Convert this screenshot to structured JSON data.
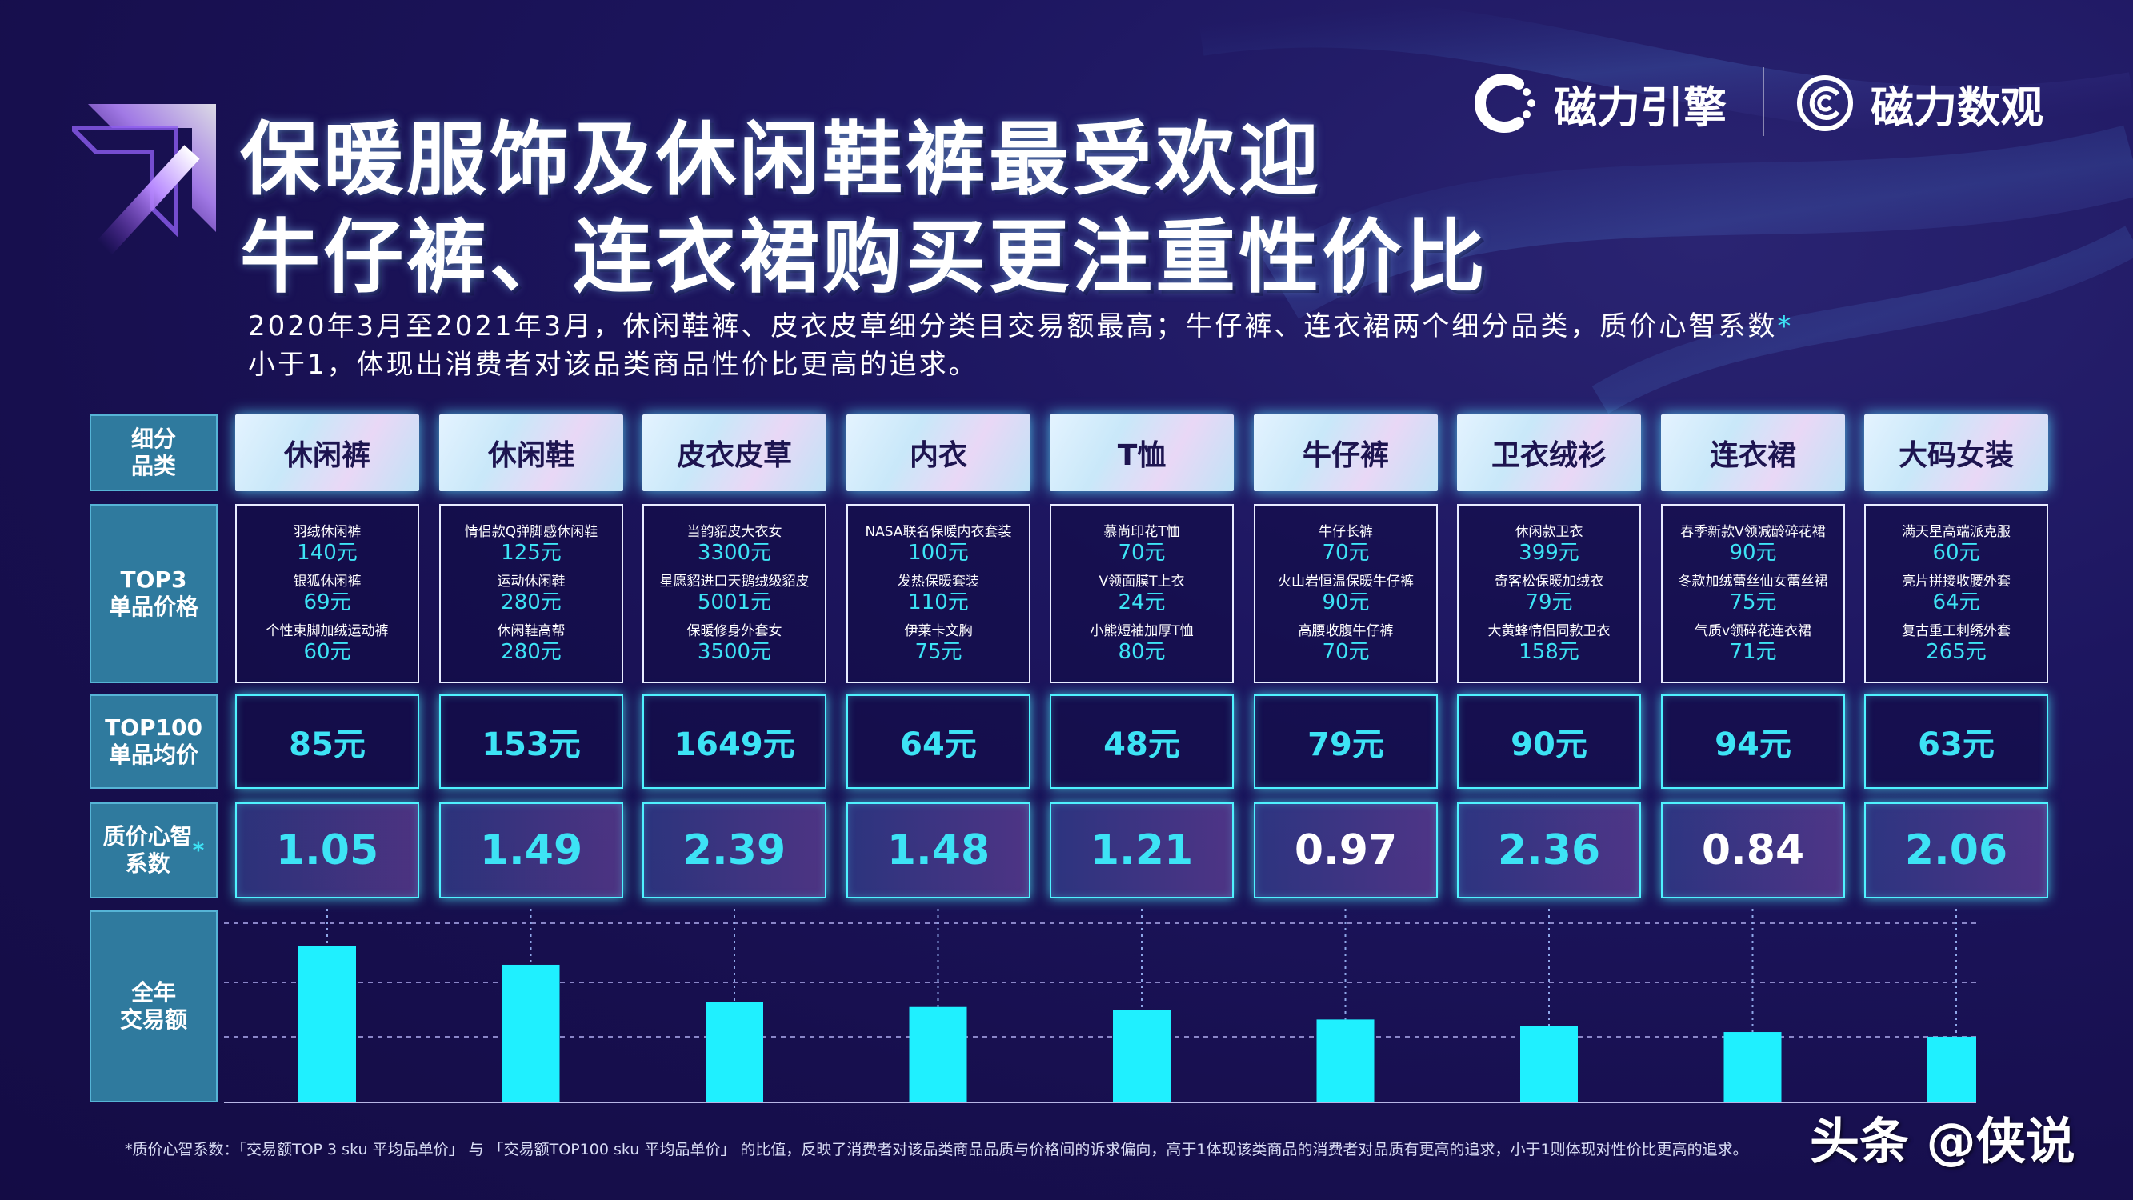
{
  "title": {
    "line1": "保暖服饰及休闲鞋裤最受欢迎",
    "line2": "牛仔裤、连衣裙购买更注重性价比"
  },
  "brands": {
    "left": "磁力引擎",
    "right": "磁力数观"
  },
  "description": {
    "line1": "2020年3月至2021年3月，休闲鞋裤、皮衣皮草细分类目交易额最高；牛仔裤、连衣裙两个细分品类，质价心智系数",
    "line1_star": "*",
    "line2": "小于1，体现出消费者对该品类商品性价比更高的追求。"
  },
  "row_labels": {
    "category": "细分\n品类",
    "top3": "TOP3\n单品价格",
    "top100": "TOP100\n单品均价",
    "ratio": "质价心智\n系数",
    "ratio_star": "*",
    "sales": "全年\n交易额"
  },
  "categories": [
    {
      "name": "休闲裤",
      "top3": [
        {
          "name": "羽绒休闲裤",
          "price": "140元"
        },
        {
          "name": "银狐休闲裤",
          "price": "69元"
        },
        {
          "name": "个性束脚加绒运动裤",
          "price": "60元"
        }
      ],
      "avg": "85元",
      "ratio": "1.05"
    },
    {
      "name": "休闲鞋",
      "top3": [
        {
          "name": "情侣款Q弹脚感休闲鞋",
          "price": "125元"
        },
        {
          "name": "运动休闲鞋",
          "price": "280元"
        },
        {
          "name": "休闲鞋高帮",
          "price": "280元"
        }
      ],
      "avg": "153元",
      "ratio": "1.49"
    },
    {
      "name": "皮衣皮草",
      "top3": [
        {
          "name": "当韵貂皮大衣女",
          "price": "3300元"
        },
        {
          "name": "星愿貂进口天鹅绒级貂皮",
          "price": "5001元"
        },
        {
          "name": "保暖修身外套女",
          "price": "3500元"
        }
      ],
      "avg": "1649元",
      "ratio": "2.39"
    },
    {
      "name": "内衣",
      "top3": [
        {
          "name": "NASA联名保暖内衣套装",
          "price": "100元"
        },
        {
          "name": "发热保暖套装",
          "price": "110元"
        },
        {
          "name": "伊莱卡文胸",
          "price": "75元"
        }
      ],
      "avg": "64元",
      "ratio": "1.48"
    },
    {
      "name": "T恤",
      "top3": [
        {
          "name": "慕尚印花T恤",
          "price": "70元"
        },
        {
          "name": "V领面膜T上衣",
          "price": "24元"
        },
        {
          "name": "小熊短袖加厚T恤",
          "price": "80元"
        }
      ],
      "avg": "48元",
      "ratio": "1.21"
    },
    {
      "name": "牛仔裤",
      "top3": [
        {
          "name": "牛仔长裤",
          "price": "70元"
        },
        {
          "name": "火山岩恒温保暖牛仔裤",
          "price": "90元"
        },
        {
          "name": "高腰收腹牛仔裤",
          "price": "70元"
        }
      ],
      "avg": "79元",
      "ratio": "0.97"
    },
    {
      "name": "卫衣绒衫",
      "top3": [
        {
          "name": "休闲款卫衣",
          "price": "399元"
        },
        {
          "name": "奇客松保暖加绒衣",
          "price": "79元"
        },
        {
          "name": "大黄蜂情侣同款卫衣",
          "price": "158元"
        }
      ],
      "avg": "90元",
      "ratio": "2.36"
    },
    {
      "name": "连衣裙",
      "top3": [
        {
          "name": "春季新款V领减龄碎花裙",
          "price": "90元"
        },
        {
          "name": "冬款加绒蕾丝仙女蕾丝裙",
          "price": "75元"
        },
        {
          "name": "气质v领碎花连衣裙",
          "price": "71元"
        }
      ],
      "avg": "94元",
      "ratio": "0.84"
    },
    {
      "name": "大码女装",
      "top3": [
        {
          "name": "满天星高端派克服",
          "price": "60元"
        },
        {
          "name": "亮片拼接收腰外套",
          "price": "64元"
        },
        {
          "name": "复古重工刺绣外套",
          "price": "265元"
        }
      ],
      "avg": "63元",
      "ratio": "2.06"
    }
  ],
  "chart_data": {
    "type": "bar",
    "categories": [
      "休闲裤",
      "休闲鞋",
      "皮衣皮草",
      "内衣",
      "T恤",
      "牛仔裤",
      "卫衣绒衫",
      "连衣裙",
      "大码女装"
    ],
    "values": [
      100,
      88,
      64,
      61,
      59,
      53,
      49,
      45,
      42
    ],
    "title": "",
    "xlabel": "",
    "ylabel": "全年交易额",
    "ylim": [
      0,
      120
    ],
    "grid": true,
    "bar_color": "#1ff0ff",
    "grid_color": "#8a86c8"
  },
  "footnote": "*质价心智系数：「交易额TOP 3 sku 平均品单价」 与 「交易额TOP100 sku 平均品单价」 的比值，反映了消费者对该品类商品品质与价格间的诉求偏向，高于1体现该类商品的消费者对品质有更高的追求，小于1则体现对性价比更高的追求。",
  "watermark": "头条 @侠说",
  "colors": {
    "accent": "#3de3f5",
    "background": "#1a1258",
    "label_bg": "#2f7a9e"
  }
}
